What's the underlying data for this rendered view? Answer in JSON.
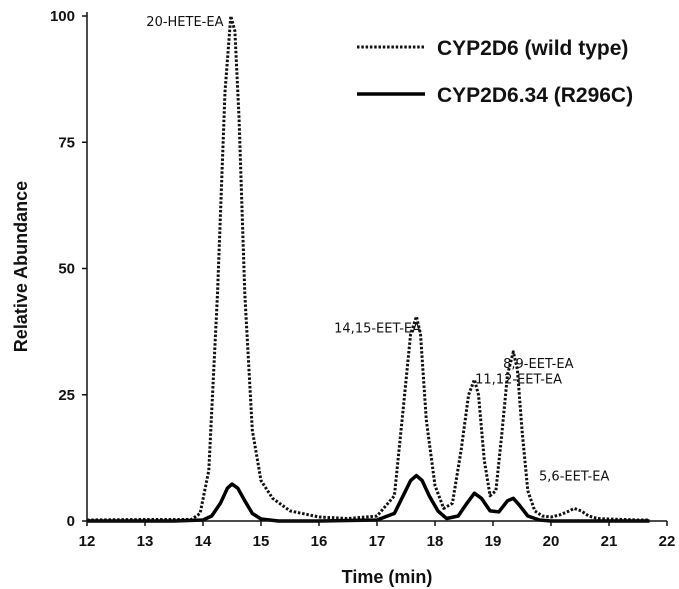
{
  "chart_data": {
    "type": "line",
    "xlabel": "Time (min)",
    "ylabel": "Relative Abundance",
    "xlim": [
      12,
      22
    ],
    "ylim": [
      0,
      100
    ],
    "xticks": [
      "12",
      "13",
      "14",
      "15",
      "16",
      "17",
      "18",
      "19",
      "20",
      "21",
      "22"
    ],
    "yticks": [
      "0",
      "25",
      "50",
      "75",
      "100"
    ],
    "grid": false,
    "legend_position": "top-right",
    "series": [
      {
        "name": "CYP2D6 (wild type)",
        "style": "dotted",
        "color": "#111111",
        "x": [
          12.0,
          13.0,
          13.8,
          13.95,
          14.1,
          14.25,
          14.38,
          14.48,
          14.55,
          14.62,
          14.72,
          14.85,
          15.0,
          15.2,
          15.5,
          16.0,
          16.5,
          17.0,
          17.3,
          17.45,
          17.58,
          17.68,
          17.75,
          17.85,
          18.0,
          18.15,
          18.3,
          18.45,
          18.58,
          18.68,
          18.75,
          18.85,
          18.95,
          19.05,
          19.15,
          19.25,
          19.35,
          19.42,
          19.5,
          19.6,
          19.72,
          19.85,
          20.0,
          20.15,
          20.28,
          20.4,
          20.52,
          20.65,
          20.8,
          21.0,
          21.5,
          21.7
        ],
        "y": [
          0.2,
          0.3,
          0.3,
          1.5,
          10,
          45,
          85,
          100,
          97,
          80,
          45,
          18,
          8,
          4.5,
          2,
          0.8,
          0.5,
          1,
          5,
          22,
          37,
          40.5,
          37,
          20,
          7,
          2.5,
          3.5,
          14,
          25,
          28,
          25,
          12,
          5,
          6,
          17,
          29,
          33.5,
          30,
          18,
          6,
          2,
          1,
          0.8,
          1.2,
          1.8,
          2.5,
          2,
          1,
          0.5,
          0.4,
          0.2,
          0.2
        ]
      },
      {
        "name": "CYP2D6.34 (R296C)",
        "style": "solid",
        "color": "#000000",
        "x": [
          12.0,
          13.5,
          14.0,
          14.15,
          14.3,
          14.42,
          14.5,
          14.6,
          14.72,
          14.85,
          15.0,
          15.3,
          16.0,
          17.0,
          17.3,
          17.45,
          17.58,
          17.68,
          17.78,
          17.9,
          18.05,
          18.2,
          18.4,
          18.55,
          18.68,
          18.8,
          18.95,
          19.1,
          19.25,
          19.35,
          19.45,
          19.6,
          19.8,
          20.0,
          20.5,
          21.0,
          21.7
        ],
        "y": [
          0,
          0,
          0.2,
          1,
          3.5,
          6.5,
          7.3,
          6.5,
          4,
          1.5,
          0.4,
          0,
          0,
          0.2,
          1.5,
          5,
          8,
          9,
          8,
          5,
          2,
          0.5,
          1,
          3.5,
          5.5,
          4.5,
          2,
          1.8,
          4,
          4.5,
          3.2,
          1,
          0.2,
          0,
          0,
          0,
          0
        ]
      }
    ],
    "annotations": [
      {
        "text": "20-HETE-EA",
        "x": 14.55,
        "y": 100
      },
      {
        "text": "14,15-EET-EA",
        "x": 17.7,
        "y": 40.5
      },
      {
        "text": "11,12-EET-EA",
        "x": 18.7,
        "y": 28
      },
      {
        "text": "8,9-EET-EA",
        "x": 19.35,
        "y": 33.5
      },
      {
        "text": "5,6-EET-EA",
        "x": 20.4,
        "y": 2.5
      }
    ]
  }
}
